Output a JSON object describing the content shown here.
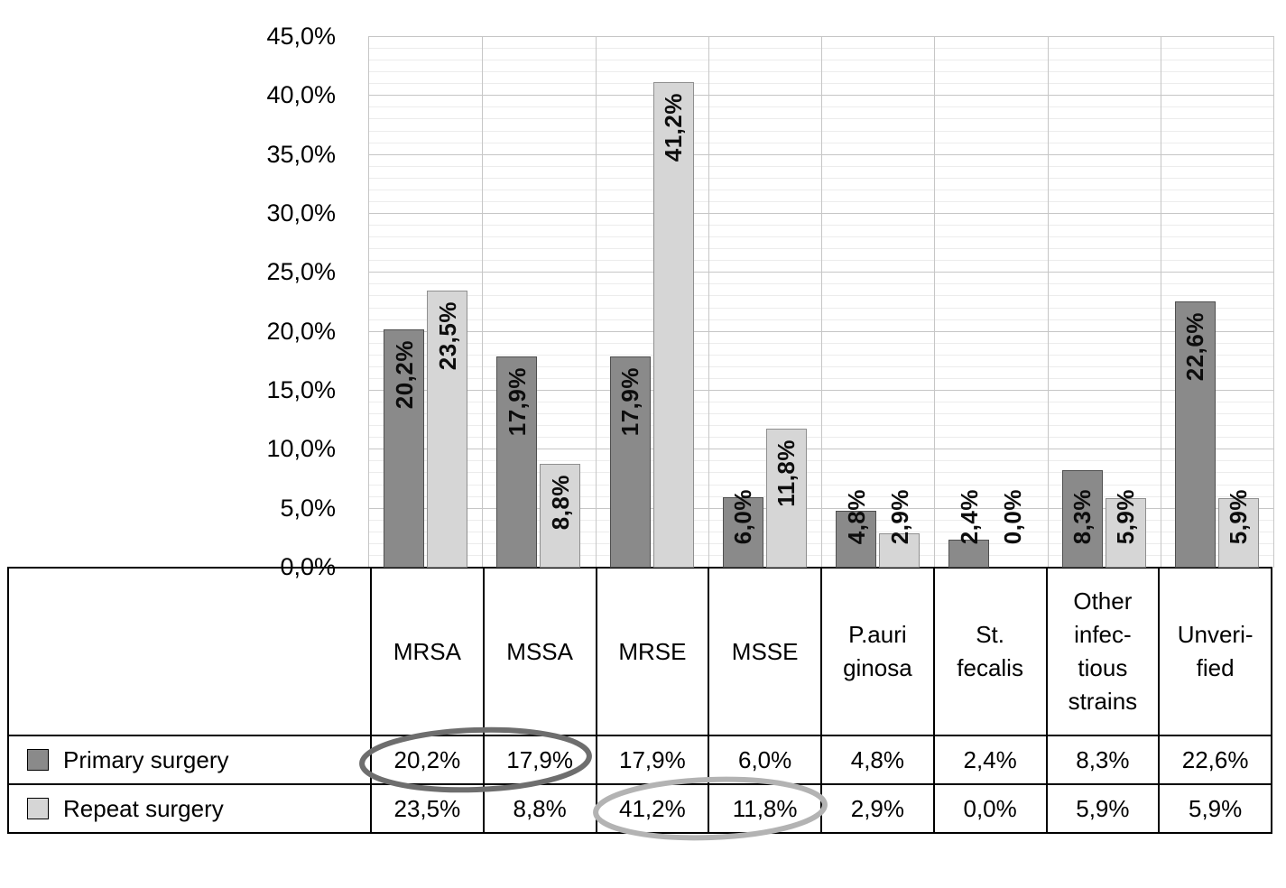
{
  "chart_data": {
    "type": "bar",
    "title": "",
    "xlabel": "",
    "ylabel": "",
    "categories": [
      "MRSA",
      "MSSA",
      "MRSE",
      "MSSE",
      "P.auri\nginosa",
      "St.\nfecalis",
      "Other\ninfec-\ntious\nstrains",
      "Unveri-\nfied"
    ],
    "series": [
      {
        "name": "Primary surgery",
        "color": "#8a8a8a",
        "border_color": "#4f4f4f",
        "values": [
          20.2,
          17.9,
          17.9,
          6.0,
          4.8,
          2.4,
          8.3,
          22.6
        ],
        "value_labels": [
          "20,2%",
          "17,9%",
          "17,9%",
          "6,0%",
          "4,8%",
          "2,4%",
          "8,3%",
          "22,6%"
        ]
      },
      {
        "name": "Repeat surgery",
        "color": "#d6d6d6",
        "border_color": "#8f8f8f",
        "values": [
          23.5,
          8.8,
          41.2,
          11.8,
          2.9,
          0.0,
          5.9,
          5.9
        ],
        "value_labels": [
          "23,5%",
          "8,8%",
          "41,2%",
          "11,8%",
          "2,9%",
          "0,0%",
          "5,9%",
          "5,9%"
        ]
      }
    ],
    "ylim": [
      0,
      45
    ],
    "y_tick_step": 5,
    "y_minor_step": 1,
    "y_tick_labels": [
      "45,0%",
      "40,0%",
      "35,0%",
      "30,0%",
      "25,0%",
      "20,0%",
      "15,0%",
      "10,0%",
      "5,0%",
      "0,0%"
    ],
    "grid": true,
    "legend_position": "table-left",
    "decimal_separator": ","
  },
  "table": {
    "rows": [
      {
        "label": "Primary surgery",
        "values": [
          "20,2%",
          "17,9%",
          "17,9%",
          "6,0%",
          "4,8%",
          "2,4%",
          "8,3%",
          "22,6%"
        ]
      },
      {
        "label": "Repeat surgery",
        "values": [
          "23,5%",
          "8,8%",
          "41,2%",
          "11,8%",
          "2,9%",
          "0,0%",
          "5,9%",
          "5,9%"
        ]
      }
    ]
  },
  "annotations": [
    {
      "name": "ellipse-primary-mrsa-mssa",
      "row": "Primary surgery",
      "circled_values": [
        "20,2%",
        "17,9%"
      ],
      "color": "#6e6e6e"
    },
    {
      "name": "ellipse-repeat-mrse-msse",
      "row": "Repeat surgery",
      "circled_values": [
        "41,2%",
        "11,8%"
      ],
      "color": "#b3b3b3"
    }
  ]
}
